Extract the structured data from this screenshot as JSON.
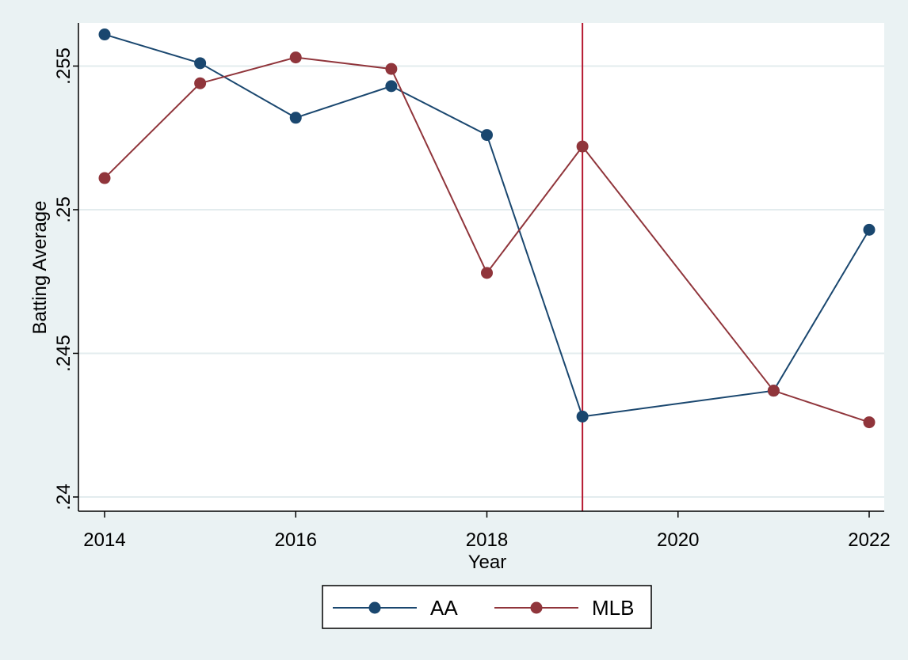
{
  "chart_data": {
    "type": "line",
    "xlabel": "Year",
    "ylabel": "Batting Average",
    "xlim": [
      2014,
      2022
    ],
    "ylim": [
      0.24,
      0.2565
    ],
    "x_ticks": [
      {
        "value": 2014,
        "label": "2014"
      },
      {
        "value": 2016,
        "label": "2016"
      },
      {
        "value": 2018,
        "label": "2018"
      },
      {
        "value": 2020,
        "label": "2020"
      },
      {
        "value": 2022,
        "label": "2022"
      }
    ],
    "y_ticks": [
      {
        "value": 0.24,
        "label": ".24"
      },
      {
        "value": 0.245,
        "label": ".245"
      },
      {
        "value": 0.25,
        "label": ".25"
      },
      {
        "value": 0.255,
        "label": ".255"
      }
    ],
    "grid": "horizontal",
    "reference_line": {
      "axis": "x",
      "value": 2019,
      "color": "#b5172f"
    },
    "legend_position": "bottom",
    "series": [
      {
        "name": "AA",
        "color": "#1a476f",
        "x": [
          2014,
          2015,
          2016,
          2017,
          2018,
          2019,
          2021,
          2022
        ],
        "y": [
          0.2561,
          0.2551,
          0.2532,
          0.2543,
          0.2526,
          0.2428,
          0.2437,
          0.2493
        ]
      },
      {
        "name": "MLB",
        "color": "#90353b",
        "x": [
          2014,
          2015,
          2016,
          2017,
          2018,
          2019,
          2021,
          2022
        ],
        "y": [
          0.2511,
          0.2544,
          0.2553,
          0.2549,
          0.2478,
          0.2522,
          0.2437,
          0.2426
        ]
      }
    ]
  }
}
